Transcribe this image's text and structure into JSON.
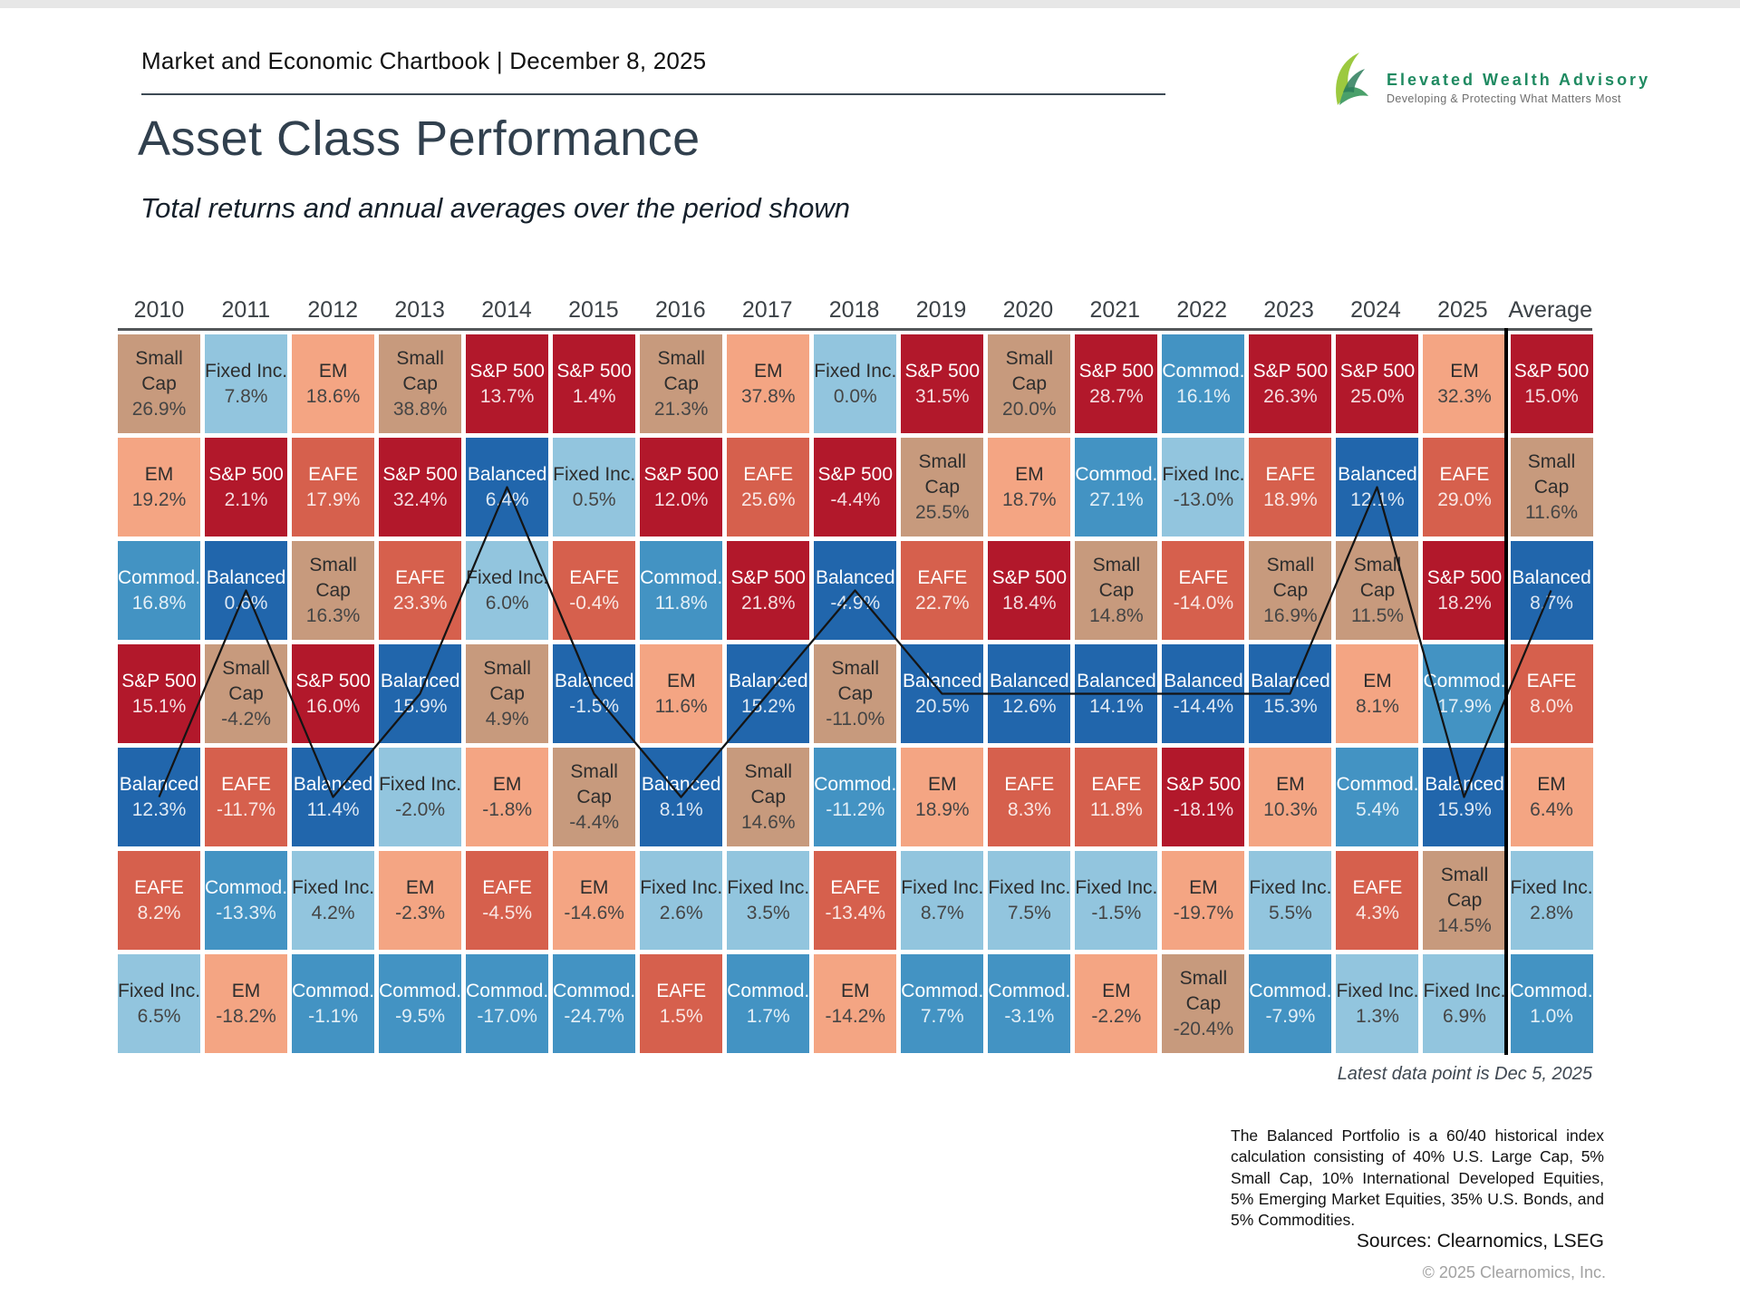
{
  "header": {
    "chartbook_title": "Market and Economic Chartbook | December 8, 2025"
  },
  "logo": {
    "name": "Elevated Wealth Advisory",
    "tagline": "Developing & Protecting What Matters Most",
    "brand_green": "#1f8a61"
  },
  "page": {
    "title": "Asset Class Performance",
    "subtitle": "Total returns and annual averages over the period shown"
  },
  "chart_data": {
    "type": "table",
    "title": "Asset Class Performance",
    "columns": [
      "2010",
      "2011",
      "2012",
      "2013",
      "2014",
      "2015",
      "2016",
      "2017",
      "2018",
      "2019",
      "2020",
      "2021",
      "2022",
      "2023",
      "2024",
      "2025",
      "Average"
    ],
    "highlight_series": "Balanced",
    "asset_colors": {
      "Small Cap": "#c79a7d",
      "Fixed Inc.": "#92c5de",
      "EM": "#f4a583",
      "S&P 500": "#b2182b",
      "Balanced": "#2166ac",
      "EAFE": "#d6604d",
      "Commod.": "#4393c3"
    },
    "white_text_assets": [
      "S&P 500",
      "Balanced",
      "EAFE",
      "Commod."
    ],
    "rows": [
      [
        {
          "asset": "Small Cap",
          "value": "26.9%"
        },
        {
          "asset": "Fixed Inc.",
          "value": "7.8%"
        },
        {
          "asset": "EM",
          "value": "18.6%"
        },
        {
          "asset": "Small Cap",
          "value": "38.8%"
        },
        {
          "asset": "S&P 500",
          "value": "13.7%"
        },
        {
          "asset": "S&P 500",
          "value": "1.4%"
        },
        {
          "asset": "Small Cap",
          "value": "21.3%"
        },
        {
          "asset": "EM",
          "value": "37.8%"
        },
        {
          "asset": "Fixed Inc.",
          "value": "0.0%"
        },
        {
          "asset": "S&P 500",
          "value": "31.5%"
        },
        {
          "asset": "Small Cap",
          "value": "20.0%"
        },
        {
          "asset": "S&P 500",
          "value": "28.7%"
        },
        {
          "asset": "Commod.",
          "value": "16.1%"
        },
        {
          "asset": "S&P 500",
          "value": "26.3%"
        },
        {
          "asset": "S&P 500",
          "value": "25.0%"
        },
        {
          "asset": "EM",
          "value": "32.3%"
        },
        {
          "asset": "S&P 500",
          "value": "15.0%"
        }
      ],
      [
        {
          "asset": "EM",
          "value": "19.2%"
        },
        {
          "asset": "S&P 500",
          "value": "2.1%"
        },
        {
          "asset": "EAFE",
          "value": "17.9%"
        },
        {
          "asset": "S&P 500",
          "value": "32.4%"
        },
        {
          "asset": "Balanced",
          "value": "6.4%"
        },
        {
          "asset": "Fixed Inc.",
          "value": "0.5%"
        },
        {
          "asset": "S&P 500",
          "value": "12.0%"
        },
        {
          "asset": "EAFE",
          "value": "25.6%"
        },
        {
          "asset": "S&P 500",
          "value": "-4.4%"
        },
        {
          "asset": "Small Cap",
          "value": "25.5%"
        },
        {
          "asset": "EM",
          "value": "18.7%"
        },
        {
          "asset": "Commod.",
          "value": "27.1%"
        },
        {
          "asset": "Fixed Inc.",
          "value": "-13.0%"
        },
        {
          "asset": "EAFE",
          "value": "18.9%"
        },
        {
          "asset": "Balanced",
          "value": "12.1%"
        },
        {
          "asset": "EAFE",
          "value": "29.0%"
        },
        {
          "asset": "Small Cap",
          "value": "11.6%"
        }
      ],
      [
        {
          "asset": "Commod.",
          "value": "16.8%"
        },
        {
          "asset": "Balanced",
          "value": "0.6%"
        },
        {
          "asset": "Small Cap",
          "value": "16.3%"
        },
        {
          "asset": "EAFE",
          "value": "23.3%"
        },
        {
          "asset": "Fixed Inc.",
          "value": "6.0%"
        },
        {
          "asset": "EAFE",
          "value": "-0.4%"
        },
        {
          "asset": "Commod.",
          "value": "11.8%"
        },
        {
          "asset": "S&P 500",
          "value": "21.8%"
        },
        {
          "asset": "Balanced",
          "value": "-4.9%"
        },
        {
          "asset": "EAFE",
          "value": "22.7%"
        },
        {
          "asset": "S&P 500",
          "value": "18.4%"
        },
        {
          "asset": "Small Cap",
          "value": "14.8%"
        },
        {
          "asset": "EAFE",
          "value": "-14.0%"
        },
        {
          "asset": "Small Cap",
          "value": "16.9%"
        },
        {
          "asset": "Small Cap",
          "value": "11.5%"
        },
        {
          "asset": "S&P 500",
          "value": "18.2%"
        },
        {
          "asset": "Balanced",
          "value": "8.7%"
        }
      ],
      [
        {
          "asset": "S&P 500",
          "value": "15.1%"
        },
        {
          "asset": "Small Cap",
          "value": "-4.2%"
        },
        {
          "asset": "S&P 500",
          "value": "16.0%"
        },
        {
          "asset": "Balanced",
          "value": "15.9%"
        },
        {
          "asset": "Small Cap",
          "value": "4.9%"
        },
        {
          "asset": "Balanced",
          "value": "-1.5%"
        },
        {
          "asset": "EM",
          "value": "11.6%"
        },
        {
          "asset": "Balanced",
          "value": "15.2%"
        },
        {
          "asset": "Small Cap",
          "value": "-11.0%"
        },
        {
          "asset": "Balanced",
          "value": "20.5%"
        },
        {
          "asset": "Balanced",
          "value": "12.6%"
        },
        {
          "asset": "Balanced",
          "value": "14.1%"
        },
        {
          "asset": "Balanced",
          "value": "-14.4%"
        },
        {
          "asset": "Balanced",
          "value": "15.3%"
        },
        {
          "asset": "EM",
          "value": "8.1%"
        },
        {
          "asset": "Commod.",
          "value": "17.9%"
        },
        {
          "asset": "EAFE",
          "value": "8.0%"
        }
      ],
      [
        {
          "asset": "Balanced",
          "value": "12.3%"
        },
        {
          "asset": "EAFE",
          "value": "-11.7%"
        },
        {
          "asset": "Balanced",
          "value": "11.4%"
        },
        {
          "asset": "Fixed Inc.",
          "value": "-2.0%"
        },
        {
          "asset": "EM",
          "value": "-1.8%"
        },
        {
          "asset": "Small Cap",
          "value": "-4.4%"
        },
        {
          "asset": "Balanced",
          "value": "8.1%"
        },
        {
          "asset": "Small Cap",
          "value": "14.6%"
        },
        {
          "asset": "Commod.",
          "value": "-11.2%"
        },
        {
          "asset": "EM",
          "value": "18.9%"
        },
        {
          "asset": "EAFE",
          "value": "8.3%"
        },
        {
          "asset": "EAFE",
          "value": "11.8%"
        },
        {
          "asset": "S&P 500",
          "value": "-18.1%"
        },
        {
          "asset": "EM",
          "value": "10.3%"
        },
        {
          "asset": "Commod.",
          "value": "5.4%"
        },
        {
          "asset": "Balanced",
          "value": "15.9%"
        },
        {
          "asset": "EM",
          "value": "6.4%"
        }
      ],
      [
        {
          "asset": "EAFE",
          "value": "8.2%"
        },
        {
          "asset": "Commod.",
          "value": "-13.3%"
        },
        {
          "asset": "Fixed Inc.",
          "value": "4.2%"
        },
        {
          "asset": "EM",
          "value": "-2.3%"
        },
        {
          "asset": "EAFE",
          "value": "-4.5%"
        },
        {
          "asset": "EM",
          "value": "-14.6%"
        },
        {
          "asset": "Fixed Inc.",
          "value": "2.6%"
        },
        {
          "asset": "Fixed Inc.",
          "value": "3.5%"
        },
        {
          "asset": "EAFE",
          "value": "-13.4%"
        },
        {
          "asset": "Fixed Inc.",
          "value": "8.7%"
        },
        {
          "asset": "Fixed Inc.",
          "value": "7.5%"
        },
        {
          "asset": "Fixed Inc.",
          "value": "-1.5%"
        },
        {
          "asset": "EM",
          "value": "-19.7%"
        },
        {
          "asset": "Fixed Inc.",
          "value": "5.5%"
        },
        {
          "asset": "EAFE",
          "value": "4.3%"
        },
        {
          "asset": "Small Cap",
          "value": "14.5%"
        },
        {
          "asset": "Fixed Inc.",
          "value": "2.8%"
        }
      ],
      [
        {
          "asset": "Fixed Inc.",
          "value": "6.5%"
        },
        {
          "asset": "EM",
          "value": "-18.2%"
        },
        {
          "asset": "Commod.",
          "value": "-1.1%"
        },
        {
          "asset": "Commod.",
          "value": "-9.5%"
        },
        {
          "asset": "Commod.",
          "value": "-17.0%"
        },
        {
          "asset": "Commod.",
          "value": "-24.7%"
        },
        {
          "asset": "EAFE",
          "value": "1.5%"
        },
        {
          "asset": "Commod.",
          "value": "1.7%"
        },
        {
          "asset": "EM",
          "value": "-14.2%"
        },
        {
          "asset": "Commod.",
          "value": "7.7%"
        },
        {
          "asset": "Commod.",
          "value": "-3.1%"
        },
        {
          "asset": "EM",
          "value": "-2.2%"
        },
        {
          "asset": "Small Cap",
          "value": "-20.4%"
        },
        {
          "asset": "Commod.",
          "value": "-7.9%"
        },
        {
          "asset": "Fixed Inc.",
          "value": "1.3%"
        },
        {
          "asset": "Fixed Inc.",
          "value": "6.9%"
        },
        {
          "asset": "Commod.",
          "value": "1.0%"
        }
      ]
    ]
  },
  "notes": {
    "latest_data_point": "Latest data point is Dec 5, 2025",
    "balanced_definition": "The Balanced Portfolio is a 60/40 historical index calculation consisting of 40% U.S. Large Cap, 5% Small Cap, 10% International Developed Equities, 5% Emerging Market Equities, 35% U.S. Bonds, and 5% Commodities.",
    "sources": "Sources: Clearnomics, LSEG",
    "copyright": "© 2025 Clearnomics, Inc."
  }
}
